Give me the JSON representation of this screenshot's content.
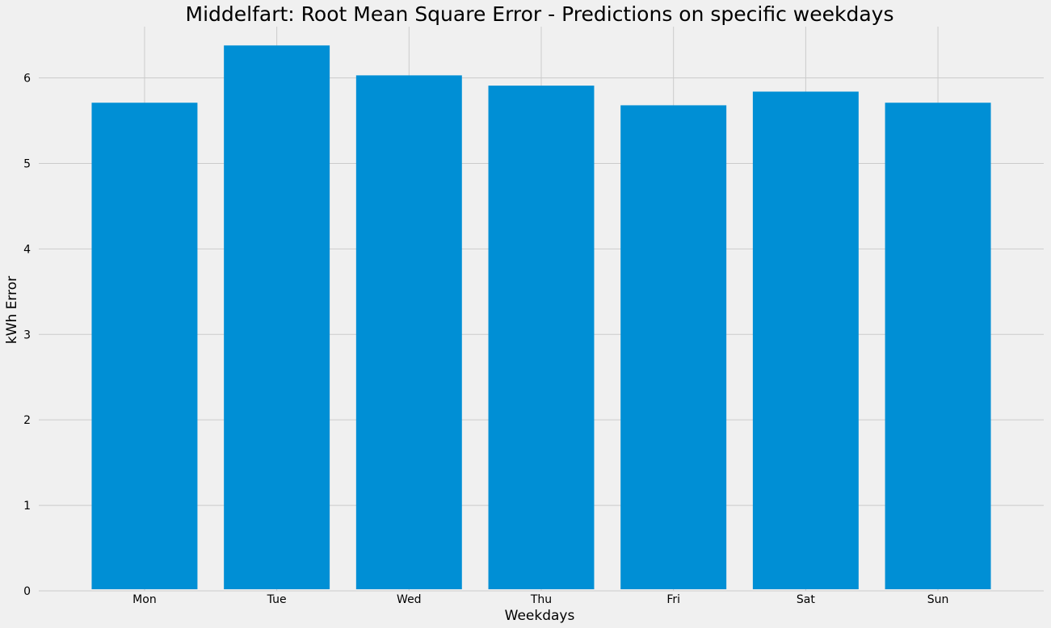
{
  "chart_data": {
    "type": "bar",
    "title": "Middelfart: Root Mean Square Error - Predictions on specific weekdays",
    "xlabel": "Weekdays",
    "ylabel": "kWh Error",
    "categories": [
      "Mon",
      "Tue",
      "Wed",
      "Thu",
      "Fri",
      "Sat",
      "Sun"
    ],
    "values": [
      5.71,
      6.38,
      6.03,
      5.91,
      5.68,
      5.84,
      5.71
    ],
    "ylim": [
      0,
      6.6
    ],
    "yticks": [
      0,
      1,
      2,
      3,
      4,
      5,
      6
    ],
    "grid": true,
    "legend": "none",
    "colors": {
      "bar": "#008fd5",
      "background": "#f0f0f0",
      "grid": "#cbcbcb",
      "text": "#000000"
    }
  }
}
